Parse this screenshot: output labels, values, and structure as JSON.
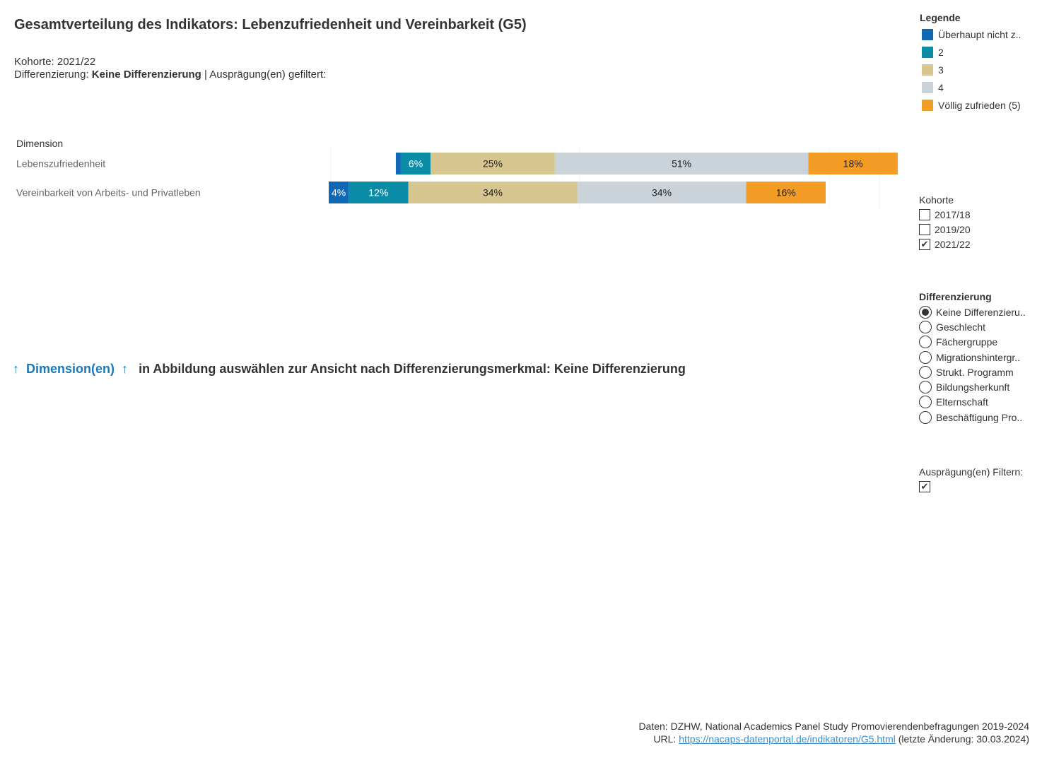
{
  "title": "Gesamtverteilung des Indikators: Lebenzufriedenheit und Vereinbarkeit (G5)",
  "subtitle": {
    "cohort_text": "Kohorte: 2021/22",
    "diff_prefix": "Differenzierung: ",
    "diff_value": "Keine Differenzierung",
    "diff_suffix": " | Ausprägung(en) gefiltert:"
  },
  "colors": {
    "cat1": "#1068b4",
    "cat2": "#0a8ca6",
    "cat3": "#d7c690",
    "cat4": "#c9d3d9",
    "cat5": "#f39d27"
  },
  "chart_data": {
    "type": "bar",
    "orientation": "horizontal",
    "stacked": true,
    "diverging": true,
    "dimension_header": "Dimension",
    "categories": [
      "Lebenszufriedenheit",
      "Vereinbarkeit von Arbeits- und Privatleben"
    ],
    "series": [
      {
        "name": "Überhaupt nicht z..",
        "color": "#1068b4",
        "values": [
          1,
          4
        ],
        "labels": [
          "",
          "4%"
        ]
      },
      {
        "name": "2",
        "color": "#0a8ca6",
        "values": [
          6,
          12
        ],
        "labels": [
          "6%",
          "12%"
        ]
      },
      {
        "name": "3",
        "color": "#d7c690",
        "values": [
          25,
          34
        ],
        "labels": [
          "25%",
          "34%"
        ]
      },
      {
        "name": "4",
        "color": "#c9d3d9",
        "values": [
          51,
          34
        ],
        "labels": [
          "51%",
          "34%"
        ]
      },
      {
        "name": "Völlig zufrieden (5)",
        "color": "#f39d27",
        "values": [
          18,
          16
        ],
        "labels": [
          "18%",
          "16%"
        ]
      }
    ],
    "grid": true
  },
  "legend": {
    "title": "Legende",
    "items": [
      {
        "label": "Überhaupt nicht z..",
        "color": "#1068b4"
      },
      {
        "label": "2",
        "color": "#0a8ca6"
      },
      {
        "label": "3",
        "color": "#d7c690"
      },
      {
        "label": "4",
        "color": "#c9d3d9"
      },
      {
        "label": "Völlig zufrieden (5)",
        "color": "#f39d27"
      }
    ]
  },
  "kohorte": {
    "title": "Kohorte",
    "options": [
      {
        "label": "2017/18",
        "checked": false
      },
      {
        "label": "2019/20",
        "checked": false
      },
      {
        "label": "2021/22",
        "checked": true
      }
    ]
  },
  "differenzierung": {
    "title": "Differenzierung",
    "options": [
      {
        "label": "Keine Differenzieru..",
        "selected": true
      },
      {
        "label": "Geschlecht",
        "selected": false
      },
      {
        "label": "Fächergruppe",
        "selected": false
      },
      {
        "label": "Migrationshintergr..",
        "selected": false
      },
      {
        "label": "Strukt. Programm",
        "selected": false
      },
      {
        "label": "Bildungsherkunft",
        "selected": false
      },
      {
        "label": "Elternschaft",
        "selected": false
      },
      {
        "label": "Beschäftigung Pro..",
        "selected": false
      }
    ]
  },
  "auspraegung": {
    "title": "Ausprägung(en) Filtern:",
    "checked": true
  },
  "instruction": {
    "arrow_left": "↑",
    "dimension_label": "Dimension(en)",
    "arrow_right": "↑",
    "text": "in Abbildung auswählen zur Ansicht nach Differenzierungsmerkmal: Keine Differenzierung"
  },
  "footer": {
    "data_source": "Daten: DZHW, National Academics Panel Study Promovierendenbefragungen 2019-2024",
    "url_prefix": "URL: ",
    "url": "https://nacaps-datenportal.de/indikatoren/G5.html",
    "url_suffix": " (letzte Änderung: 30.03.2024)"
  }
}
